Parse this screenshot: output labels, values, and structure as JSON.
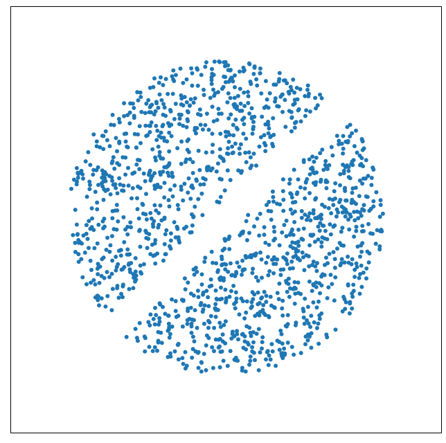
{
  "chart_data": {
    "type": "scatter",
    "title": "",
    "xlabel": "",
    "ylabel": "",
    "xlim": [
      -1.15,
      1.15
    ],
    "ylim": [
      -1.15,
      1.15
    ],
    "grid": false,
    "axes_ticks": false,
    "series": [
      {
        "marker_color": "#1f77b4",
        "point_count": 1500,
        "shape": "uniform points filling a unit disk, with an empty diagonal band through the center",
        "disk_center": [
          0,
          0
        ],
        "disk_radius": 1.0,
        "gap_direction_deg": 45,
        "gap_half_width": 0.085
      }
    ]
  }
}
